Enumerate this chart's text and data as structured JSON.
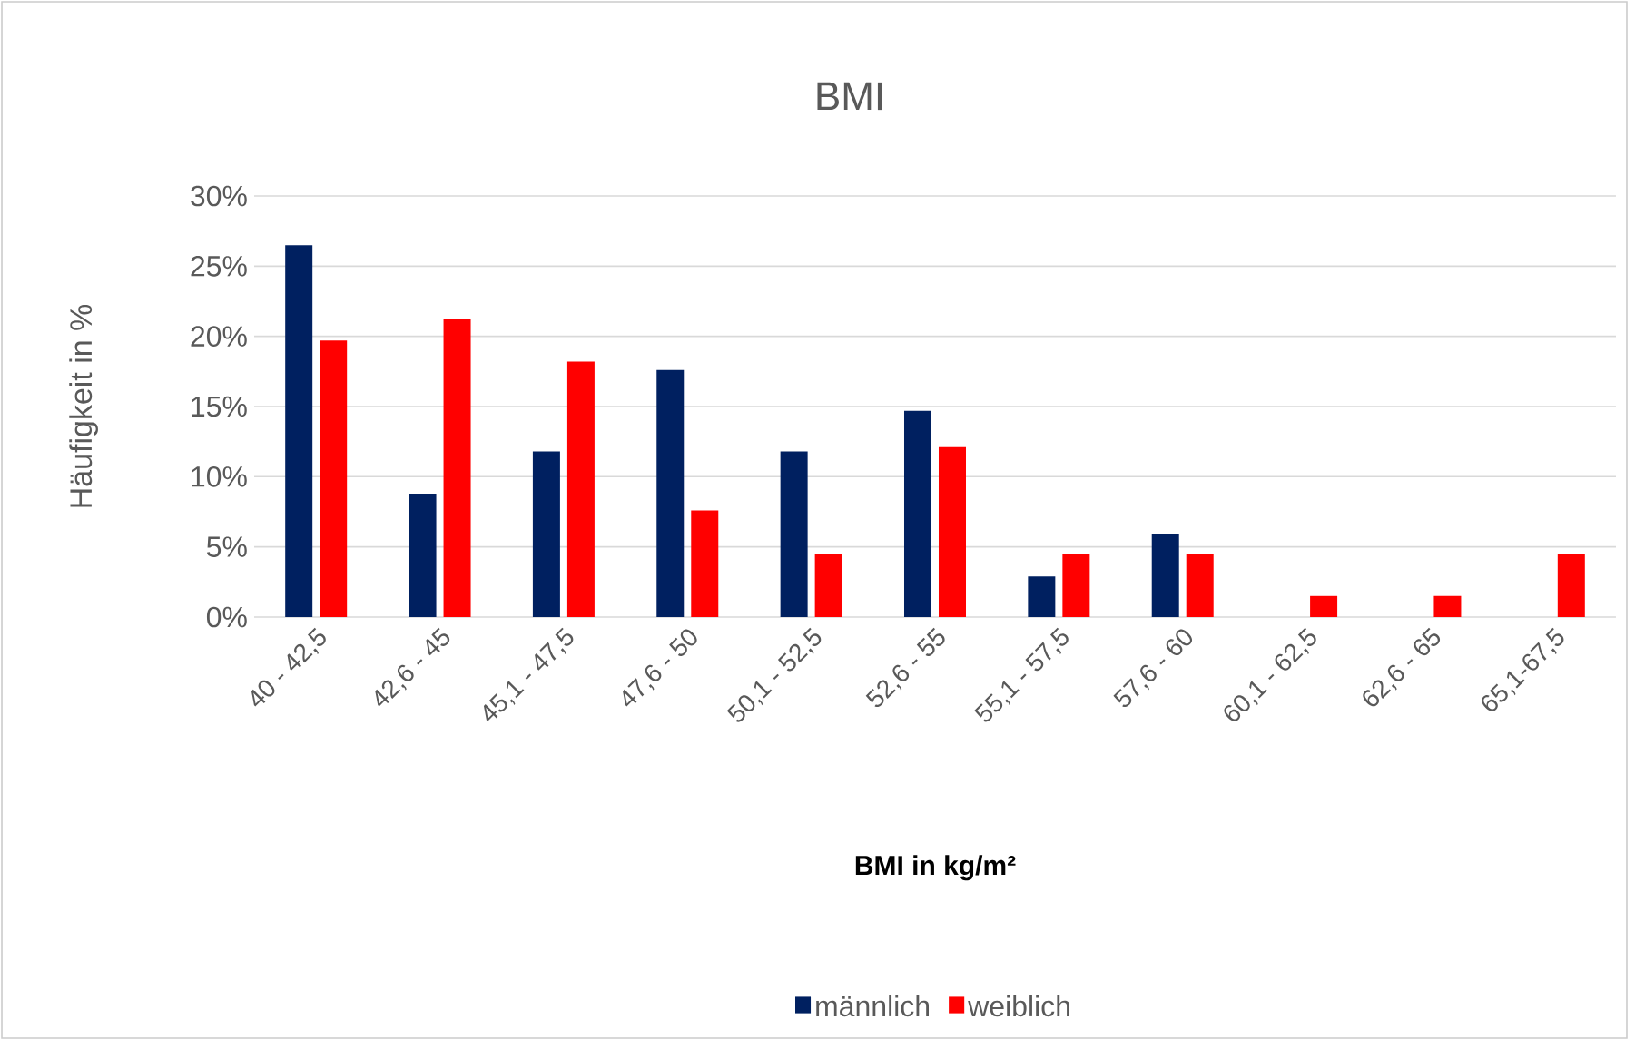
{
  "chart_data": {
    "type": "bar",
    "title": "BMI",
    "xlabel": "**BMI in kg/m²**",
    "ylabel": "Häufigkeit in %",
    "categories": [
      "40 - 42,5",
      "42,6 - 45",
      "45,1 - 47,5",
      "47,6 - 50",
      "50,1 - 52,5",
      "52,6 - 55",
      "55,1 - 57,5",
      "57,6 - 60",
      "60,1 - 62,5",
      "62,6 - 65",
      "65,1-67,5"
    ],
    "series": [
      {
        "name": "männlich",
        "color": "#002060",
        "values": [
          26.5,
          8.8,
          11.8,
          17.6,
          11.8,
          14.7,
          2.9,
          5.9,
          0,
          0,
          0
        ]
      },
      {
        "name": "weiblich",
        "color": "#ff0000",
        "values": [
          19.7,
          21.2,
          18.2,
          7.6,
          4.5,
          12.1,
          4.5,
          4.5,
          1.5,
          1.5,
          4.5
        ]
      }
    ],
    "ylim": [
      0,
      30
    ],
    "yticks": [
      {
        "value": 0,
        "label": "0%"
      },
      {
        "value": 5,
        "label": "5%"
      },
      {
        "value": 10,
        "label": "10%"
      },
      {
        "value": 15,
        "label": "15%"
      },
      {
        "value": 20,
        "label": "20%"
      },
      {
        "value": 25,
        "label": "25%"
      },
      {
        "value": 30,
        "label": "30%"
      }
    ],
    "grid": "y",
    "legend": "bottom"
  }
}
